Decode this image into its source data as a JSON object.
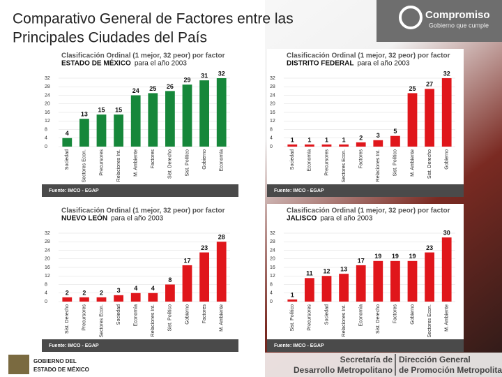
{
  "slide": {
    "title_line1": "Comparativo General de Factores entre las",
    "title_line2": "Principales Ciudades del País",
    "logo": "Compromiso",
    "logo_tagline": "Gobierno que cumple",
    "gov_line1": "GOBIERNO DEL",
    "gov_line2": "ESTADO DE MÉXICO",
    "sec_line1": "Secretaría de",
    "sec_line2": "Desarrollo Metropolitano",
    "dir_line1": "Dirección General",
    "dir_line2": "de Promoción Metropolitana"
  },
  "chart_data": [
    {
      "type": "bar",
      "title": "Clasificación Ordinal (1 mejor, 32 peor) por factor",
      "state": "ESTADO DE MÉXICO",
      "period": "para el año 2003",
      "source": "Fuente: IMCO - EGAP",
      "color": "#16873a",
      "categories": [
        "Sociedad",
        "Sectores Econ.",
        "Precursores",
        "Relaciones Int.",
        "M. Ambiente",
        "Factores",
        "Sist. Derecho",
        "Sist. Político",
        "Gobierno",
        "Economía"
      ],
      "values": [
        4,
        13,
        15,
        15,
        24,
        25,
        26,
        29,
        31,
        32
      ],
      "ylim": [
        0,
        32
      ],
      "yticks": [
        0,
        4,
        8,
        12,
        16,
        20,
        24,
        28,
        32
      ],
      "grid": true
    },
    {
      "type": "bar",
      "title": "Clasificación Ordinal (1 mejor, 32 peor) por factor",
      "state": "DISTRITO FEDERAL",
      "period": "para el año 2003",
      "source": "Fuente: IMCO - EGAP",
      "color": "#e0161b",
      "categories": [
        "Sociedad",
        "Economía",
        "Precursores",
        "Sectores Econ.",
        "Factores",
        "Relaciones Int.",
        "Sist. Político",
        "M. Ambiente",
        "Sist. Derecho",
        "Gobierno"
      ],
      "values": [
        1,
        1,
        1,
        1,
        2,
        3,
        5,
        25,
        27,
        32
      ],
      "ylim": [
        0,
        32
      ],
      "yticks": [
        0,
        4,
        8,
        12,
        16,
        20,
        24,
        28,
        32
      ],
      "grid": true
    },
    {
      "type": "bar",
      "title": "Clasificación Ordinal (1 mejor, 32 peor) por factor",
      "state": "NUEVO LEÓN",
      "period": "para el año 2003",
      "source": "Fuente: IMCO - EGAP",
      "color": "#e0161b",
      "categories": [
        "Sist. Derecho",
        "Precursores",
        "Sectores Econ.",
        "Sociedad",
        "Economía",
        "Relaciones Int.",
        "Sist. Político",
        "Gobierno",
        "Factores",
        "M. Ambiente"
      ],
      "values": [
        2,
        2,
        2,
        3,
        4,
        4,
        8,
        17,
        23,
        28
      ],
      "ylim": [
        0,
        32
      ],
      "yticks": [
        0,
        4,
        8,
        12,
        16,
        20,
        24,
        28,
        32
      ],
      "grid": true
    },
    {
      "type": "bar",
      "title": "Clasificación Ordinal (1 mejor, 32 peor) por factor",
      "state": "JALISCO",
      "period": "para el año 2003",
      "source": "Fuente: IMCO - EGAP",
      "color": "#e0161b",
      "categories": [
        "Sist. Político",
        "Precursores",
        "Sociedad",
        "Relaciones Int.",
        "Economía",
        "Sist. Derecho",
        "Factores",
        "Gobierno",
        "Sectores Econ.",
        "M. Ambiente"
      ],
      "values": [
        1,
        11,
        12,
        13,
        17,
        19,
        19,
        19,
        23,
        30
      ],
      "ylim": [
        0,
        32
      ],
      "yticks": [
        0,
        4,
        8,
        12,
        16,
        20,
        24,
        28,
        32
      ],
      "grid": true
    }
  ]
}
